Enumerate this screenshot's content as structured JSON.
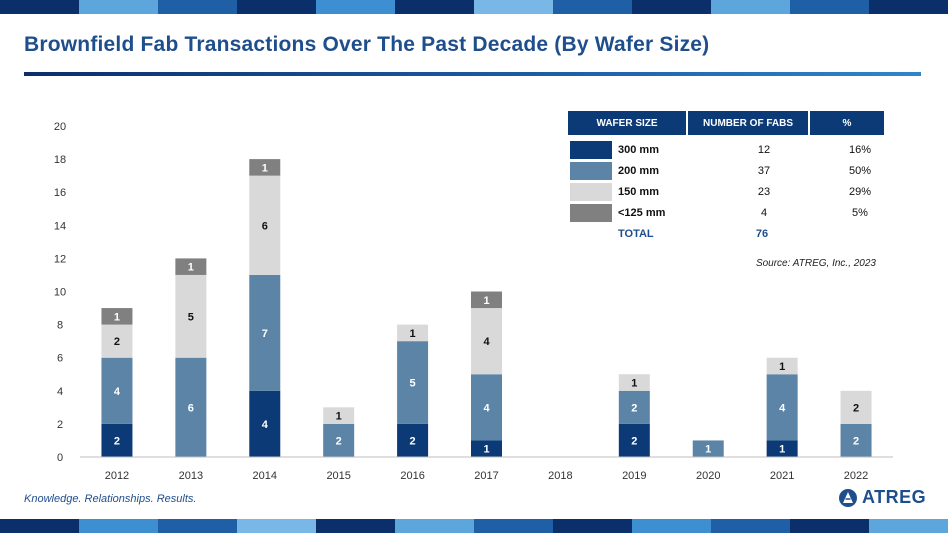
{
  "title": "Brownfield Fab Transactions Over The Past Decade (By Wafer Size)",
  "tagline": "Knowledge. Relationships. Results.",
  "logo_text": "ATREG",
  "source": "Source: ATREG, Inc., 2023",
  "colors": {
    "300mm": "#0b3a77",
    "200mm": "#5b84a6",
    "150mm": "#d9d9d9",
    "125mm": "#808080",
    "title": "#1f4e8c",
    "header": "#0b3a77"
  },
  "table": {
    "headers": [
      "WAFER SIZE",
      "NUMBER OF FABS",
      "%"
    ],
    "rows": [
      {
        "size": "300 mm",
        "count": "12",
        "pct": "16%",
        "color": "#0b3a77"
      },
      {
        "size": "200 mm",
        "count": "37",
        "pct": "50%",
        "color": "#5b84a6"
      },
      {
        "size": "150 mm",
        "count": "23",
        "pct": "29%",
        "color": "#d9d9d9"
      },
      {
        "size": "<125 mm",
        "count": "4",
        "pct": "5%",
        "color": "#808080"
      }
    ],
    "total_label": "TOTAL",
    "total_value": "76"
  },
  "chart_data": {
    "type": "bar",
    "stacked": true,
    "title": "Brownfield Fab Transactions Over The Past Decade (By Wafer Size)",
    "xlabel": "",
    "ylabel": "",
    "ylim": [
      0,
      20
    ],
    "yticks": [
      0,
      2,
      4,
      6,
      8,
      10,
      12,
      14,
      16,
      18,
      20
    ],
    "categories": [
      "2012",
      "2013",
      "2014",
      "2015",
      "2016",
      "2017",
      "2018",
      "2019",
      "2020",
      "2021",
      "2022"
    ],
    "series": [
      {
        "name": "300 mm",
        "color": "#0b3a77",
        "label_color": "#ffffff",
        "values": [
          2,
          0,
          4,
          0,
          2,
          1,
          0,
          2,
          0,
          1,
          0
        ]
      },
      {
        "name": "200 mm",
        "color": "#5b84a6",
        "label_color": "#ffffff",
        "values": [
          4,
          6,
          7,
          2,
          5,
          4,
          0,
          2,
          1,
          4,
          2
        ]
      },
      {
        "name": "150 mm",
        "color": "#d9d9d9",
        "label_color": "#111111",
        "values": [
          2,
          5,
          6,
          1,
          1,
          4,
          0,
          1,
          0,
          1,
          2
        ]
      },
      {
        "name": "<125 mm",
        "color": "#808080",
        "label_color": "#ffffff",
        "values": [
          1,
          1,
          1,
          0,
          0,
          1,
          0,
          0,
          0,
          0,
          0
        ]
      }
    ],
    "grid": false,
    "legend": "table top-right"
  }
}
